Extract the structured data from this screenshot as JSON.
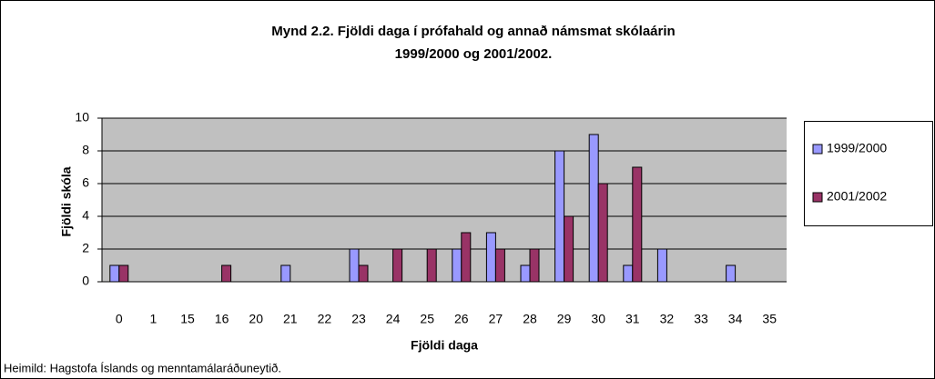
{
  "chart_data": {
    "type": "bar",
    "title": "Mynd 2.2. Fjöldi daga í prófahald og annað námsmat skólaárin",
    "subtitle": "1999/2000 og 2001/2002.",
    "x_label": "Fjöldi daga",
    "y_label": "Fjöldi skóla",
    "source": "Heimild: Hagstofa Íslands og menntamálaráðuneytið.",
    "categories": [
      "0",
      "1",
      "15",
      "16",
      "20",
      "21",
      "22",
      "23",
      "24",
      "25",
      "26",
      "27",
      "28",
      "29",
      "30",
      "31",
      "32",
      "33",
      "34",
      "35"
    ],
    "series": [
      {
        "name": "1999/2000",
        "color": "#9999ff",
        "values": [
          1,
          0,
          0,
          0,
          0,
          1,
          0,
          2,
          0,
          0,
          2,
          3,
          1,
          8,
          9,
          1,
          2,
          0,
          1,
          0
        ]
      },
      {
        "name": "2001/2002",
        "color": "#993366",
        "values": [
          1,
          0,
          0,
          1,
          0,
          0,
          0,
          1,
          2,
          2,
          3,
          2,
          2,
          4,
          6,
          7,
          0,
          0,
          0,
          0
        ]
      }
    ],
    "ylim": [
      0,
      10
    ],
    "yticks": [
      0,
      2,
      4,
      6,
      8,
      10
    ],
    "grid": true,
    "legend": "right"
  }
}
